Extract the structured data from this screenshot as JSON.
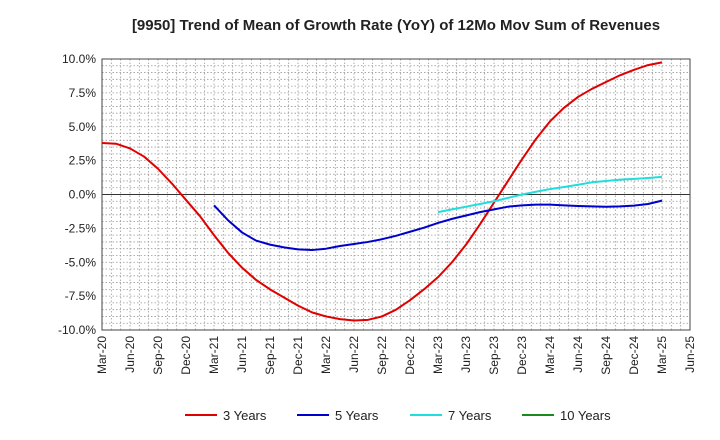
{
  "chart_data": {
    "type": "line",
    "title": "[9950]  Trend of Mean of Growth Rate (YoY) of 12Mo Mov Sum of Revenues",
    "xlabel": "",
    "ylabel": "",
    "ylim": [
      -10.0,
      10.0
    ],
    "yticks": [
      {
        "value": 10.0,
        "label": "10.0%"
      },
      {
        "value": 7.5,
        "label": "7.5%"
      },
      {
        "value": 5.0,
        "label": "5.0%"
      },
      {
        "value": 2.5,
        "label": "2.5%"
      },
      {
        "value": 0.0,
        "label": "0.0%"
      },
      {
        "value": -2.5,
        "label": "-2.5%"
      },
      {
        "value": -5.0,
        "label": "-5.0%"
      },
      {
        "value": -7.5,
        "label": "-7.5%"
      },
      {
        "value": -10.0,
        "label": "-10.0%"
      }
    ],
    "xticks": [
      "Mar-20",
      "Jun-20",
      "Sep-20",
      "Dec-20",
      "Mar-21",
      "Jun-21",
      "Sep-21",
      "Dec-21",
      "Mar-22",
      "Jun-22",
      "Sep-22",
      "Dec-22",
      "Mar-23",
      "Jun-23",
      "Sep-23",
      "Dec-23",
      "Mar-24",
      "Jun-24",
      "Sep-24",
      "Dec-24",
      "Mar-25",
      "Jun-25"
    ],
    "x_index_note": "x values are quarter indices: 0 = Mar-20, 1 = Jun-20, ... 21 = Jun-25",
    "xlim": [
      0,
      21
    ],
    "grid": true,
    "legend_position": "bottom",
    "series": [
      {
        "name": "3 Years",
        "color": "#e00000",
        "x": [
          0,
          0.5,
          1,
          1.5,
          2,
          2.5,
          3,
          3.5,
          4,
          4.5,
          5,
          5.5,
          6,
          6.5,
          7,
          7.5,
          8,
          8.5,
          9,
          9.5,
          10,
          10.5,
          11,
          11.5,
          12,
          12.5,
          13,
          13.5,
          14,
          14.5,
          15,
          15.5,
          16,
          16.5,
          17,
          17.5,
          18,
          18.5,
          19,
          19.5,
          20
        ],
        "values": [
          3.8,
          3.75,
          3.4,
          2.8,
          1.9,
          0.8,
          -0.4,
          -1.6,
          -3.0,
          -4.3,
          -5.4,
          -6.3,
          -7.0,
          -7.6,
          -8.2,
          -8.7,
          -9.0,
          -9.2,
          -9.3,
          -9.25,
          -9.0,
          -8.5,
          -7.8,
          -7.0,
          -6.1,
          -5.0,
          -3.7,
          -2.2,
          -0.6,
          1.0,
          2.6,
          4.1,
          5.4,
          6.4,
          7.2,
          7.8,
          8.3,
          8.8,
          9.2,
          9.55,
          9.75
        ]
      },
      {
        "name": "5 Years",
        "color": "#0000cc",
        "x": [
          4,
          4.5,
          5,
          5.5,
          6,
          6.5,
          7,
          7.5,
          8,
          8.5,
          9,
          9.5,
          10,
          10.5,
          11,
          11.5,
          12,
          12.5,
          13,
          13.5,
          14,
          14.5,
          15,
          15.5,
          16,
          16.5,
          17,
          17.5,
          18,
          18.5,
          19,
          19.5,
          20
        ],
        "values": [
          -0.8,
          -1.9,
          -2.8,
          -3.4,
          -3.7,
          -3.9,
          -4.05,
          -4.1,
          -4.0,
          -3.8,
          -3.65,
          -3.5,
          -3.3,
          -3.05,
          -2.75,
          -2.45,
          -2.1,
          -1.8,
          -1.55,
          -1.3,
          -1.1,
          -0.9,
          -0.8,
          -0.75,
          -0.75,
          -0.8,
          -0.85,
          -0.88,
          -0.9,
          -0.88,
          -0.82,
          -0.7,
          -0.45
        ]
      },
      {
        "name": "7 Years",
        "color": "#22dddd",
        "x": [
          12,
          12.5,
          13,
          13.5,
          14,
          14.5,
          15,
          15.5,
          16,
          16.5,
          17,
          17.5,
          18,
          18.5,
          19,
          19.5,
          20
        ],
        "values": [
          -1.3,
          -1.1,
          -0.9,
          -0.7,
          -0.5,
          -0.25,
          0.0,
          0.2,
          0.4,
          0.55,
          0.72,
          0.9,
          1.0,
          1.1,
          1.15,
          1.22,
          1.3
        ]
      },
      {
        "name": "10 Years",
        "color": "#1a8a1a",
        "x": [],
        "values": []
      }
    ]
  }
}
